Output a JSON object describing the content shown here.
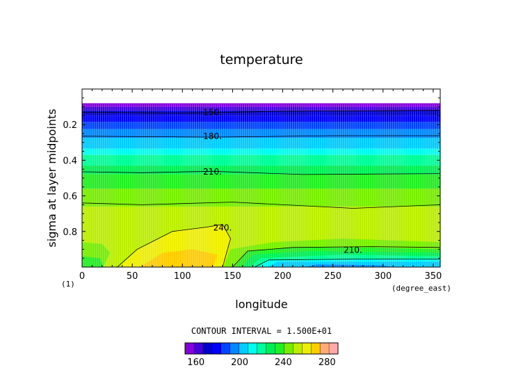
{
  "chart_data": {
    "type": "contour",
    "title": "temperature",
    "xlabel": "longitude",
    "ylabel": "sigma at layer midpoints",
    "x_units": "(degree_east)",
    "panel_label": "(1)",
    "xlim": [
      0,
      357
    ],
    "ylim": [
      1.0,
      0.0
    ],
    "x_ticks": [
      0,
      50,
      100,
      150,
      200,
      250,
      300,
      350
    ],
    "y_ticks": [
      0.2,
      0.4,
      0.6,
      0.8
    ],
    "x_tick_labels": [
      "0",
      "50",
      "100",
      "150",
      "200",
      "250",
      "300",
      "350"
    ],
    "y_tick_labels": [
      "0.2",
      "0.4",
      "0.6",
      "0.8"
    ],
    "contour_interval_text": "CONTOUR INTERVAL = 1.500E+01",
    "contour_labels": [
      {
        "text": "150.",
        "x": 130,
        "y": 0.13
      },
      {
        "text": "180.",
        "x": 130,
        "y": 0.265
      },
      {
        "text": "210.",
        "x": 130,
        "y": 0.465
      },
      {
        "text": "240.",
        "x": 140,
        "y": 0.78
      },
      {
        "text": "210.",
        "x": 270,
        "y": 0.905
      }
    ],
    "colorbar": {
      "min": 150,
      "max": 290,
      "step": 10,
      "tick_labels": [
        "160",
        "200",
        "240",
        "280"
      ],
      "tick_values": [
        160,
        200,
        240,
        280
      ],
      "colors": [
        "#8800dd",
        "#4400dd",
        "#0000cc",
        "#0000ff",
        "#0044ff",
        "#0088ff",
        "#00ccff",
        "#00ffee",
        "#00ff99",
        "#00ee55",
        "#22ee22",
        "#77ee00",
        "#bbee00",
        "#eeee00",
        "#ffcc00",
        "#ffaa77",
        "#ffaaaa"
      ]
    },
    "grid": false,
    "legend": "bottom-center"
  }
}
